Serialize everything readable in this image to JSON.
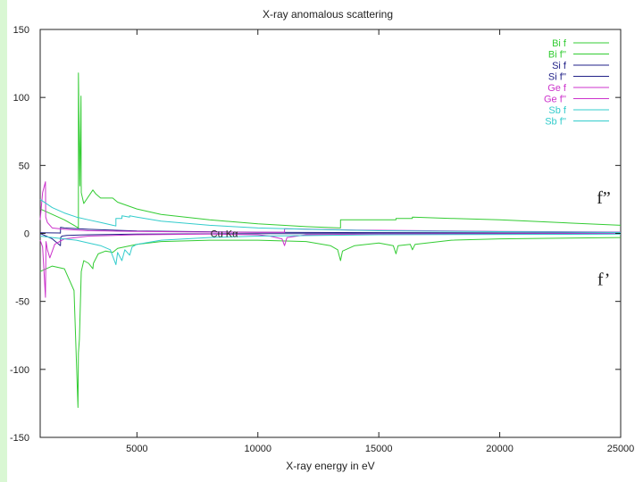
{
  "chart_data": {
    "type": "line",
    "title": "X-ray anomalous scattering",
    "xlabel": "X-ray energy in eV",
    "ylabel": "",
    "xlim": [
      1000,
      25000
    ],
    "ylim": [
      -150,
      150
    ],
    "xticks": [
      5000,
      10000,
      15000,
      20000,
      25000
    ],
    "yticks": [
      150,
      100,
      50,
      0,
      -50,
      -100,
      -150
    ],
    "grid": false,
    "legend_position": "top-right",
    "series": [
      {
        "name": "Bi f",
        "color": "#33cc33",
        "x": [
          1000,
          1500,
          2000,
          2400,
          2560,
          2580,
          2620,
          2700,
          2800,
          3000,
          3177,
          3200,
          3400,
          3700,
          3999,
          4200,
          5000,
          6000,
          8000,
          10000,
          12000,
          13000,
          13300,
          13418,
          13500,
          14000,
          15000,
          15600,
          15711,
          15800,
          16300,
          16388,
          16500,
          18000,
          20000,
          25000
        ],
        "y": [
          -28,
          -24,
          -26,
          -42,
          -128,
          -88,
          -78,
          -28,
          -20,
          -22,
          -26,
          -22,
          -15,
          -13,
          -14,
          -11,
          -8,
          -6,
          -5,
          -5,
          -6,
          -9,
          -12,
          -20,
          -13,
          -9,
          -7,
          -9,
          -15,
          -9,
          -8,
          -12,
          -8,
          -5,
          -4,
          -3
        ]
      },
      {
        "name": "Bi f''",
        "color": "#33cc33",
        "x": [
          1000,
          1500,
          2000,
          2400,
          2579,
          2580,
          2640,
          2688,
          2700,
          2800,
          3177,
          3300,
          3500,
          3999,
          4200,
          5000,
          6000,
          8000,
          10000,
          12000,
          13418,
          13419,
          14000,
          15711,
          15712,
          16387,
          16388,
          18000,
          20000,
          25000
        ],
        "y": [
          18,
          14,
          10,
          6,
          4,
          118,
          35,
          101,
          30,
          22,
          32,
          29,
          26,
          26,
          23,
          18,
          14,
          10,
          7,
          5,
          4,
          10,
          10,
          10,
          11,
          11,
          12,
          11,
          10,
          6
        ]
      },
      {
        "name": "Si f",
        "color": "#222288",
        "x": [
          1000,
          1500,
          1839,
          1845,
          1900,
          2100,
          3000,
          5000,
          10000,
          25000
        ],
        "y": [
          0,
          -4,
          -9,
          -3,
          -2,
          -1.5,
          -1,
          -0.5,
          -0.2,
          0
        ]
      },
      {
        "name": "Si f''",
        "color": "#222288",
        "x": [
          1000,
          1800,
          1839,
          1840,
          2000,
          3000,
          5000,
          10000,
          25000
        ],
        "y": [
          0.5,
          0.3,
          0.2,
          4.5,
          4,
          3,
          1.8,
          0.8,
          0.2
        ]
      },
      {
        "name": "Ge f",
        "color": "#cc33cc",
        "x": [
          1000,
          1100,
          1217,
          1240,
          1300,
          1400,
          1600,
          2000,
          3000,
          5000,
          8000,
          10000,
          10500,
          11000,
          11103,
          11200,
          12000,
          15000,
          25000
        ],
        "y": [
          -5,
          -10,
          -47,
          -6,
          -12,
          -18,
          -8,
          -4,
          -2,
          -1,
          -0.5,
          -1,
          -2,
          -4,
          -9,
          -3,
          -1,
          -0.5,
          0
        ]
      },
      {
        "name": "Ge f''",
        "color": "#cc33cc",
        "x": [
          1000,
          1100,
          1217,
          1230,
          1300,
          1500,
          2000,
          3000,
          5000,
          8000,
          11103,
          11104,
          14000,
          20000,
          25000
        ],
        "y": [
          10,
          30,
          38,
          12,
          8,
          4,
          3,
          2,
          1.5,
          1,
          0.8,
          3.5,
          2.5,
          1.5,
          1
        ]
      },
      {
        "name": "Sb f",
        "color": "#33cccc",
        "x": [
          1000,
          1500,
          2000,
          2500,
          3000,
          3500,
          3900,
          4132,
          4200,
          4380,
          4500,
          4698,
          4800,
          5000,
          6000,
          8000,
          10000,
          15000,
          25000
        ],
        "y": [
          -2,
          -3,
          -4,
          -5,
          -7,
          -9,
          -12,
          -23,
          -14,
          -20,
          -12,
          -16,
          -10,
          -8,
          -5,
          -3,
          -2,
          -1,
          -0.5
        ]
      },
      {
        "name": "Sb f''",
        "color": "#33cccc",
        "x": [
          1000,
          1500,
          2000,
          2500,
          3000,
          3500,
          4000,
          4131,
          4132,
          4380,
          4381,
          4697,
          4698,
          5000,
          6000,
          8000,
          10000,
          12000,
          15000,
          20000,
          25000
        ],
        "y": [
          25,
          19,
          15,
          12,
          10,
          8,
          6,
          5.5,
          11,
          11,
          13,
          12,
          13,
          12,
          9,
          6,
          4,
          3,
          2,
          1.3,
          0.7
        ]
      }
    ],
    "annotations": [
      {
        "text": "f”",
        "x": 24300,
        "y": 26
      },
      {
        "text": "f’",
        "x": 24300,
        "y": -34
      },
      {
        "text": "Cu Kα",
        "x": 8040,
        "y": 0
      }
    ]
  }
}
